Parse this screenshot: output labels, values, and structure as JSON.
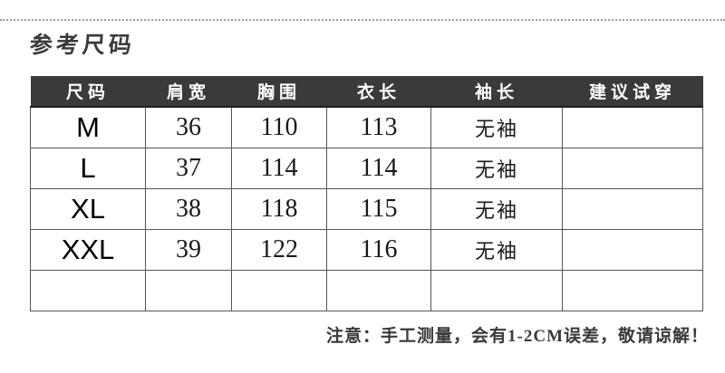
{
  "title": "参考尺码",
  "table": {
    "headers": [
      "尺码",
      "肩宽",
      "胸围",
      "衣长",
      "袖长",
      "建议试穿"
    ],
    "rows": [
      [
        "M",
        "36",
        "110",
        "113",
        "无袖",
        ""
      ],
      [
        "L",
        "37",
        "114",
        "114",
        "无袖",
        ""
      ],
      [
        "XL",
        "38",
        "118",
        "115",
        "无袖",
        ""
      ],
      [
        "XXL",
        "39",
        "122",
        "116",
        "无袖",
        ""
      ],
      [
        "",
        "",
        "",
        "",
        "",
        ""
      ]
    ]
  },
  "note": "注意：手工测量，会有1-2CM误差，敬请谅解！",
  "colors": {
    "header_bg": "#3a3a3a",
    "header_text": "#ffffff",
    "table_border": "#555555",
    "body_text": "#1a1a1a",
    "title_text": "#3a3a3a",
    "dotted_line": "#9a9a9a",
    "background": "#ffffff"
  }
}
